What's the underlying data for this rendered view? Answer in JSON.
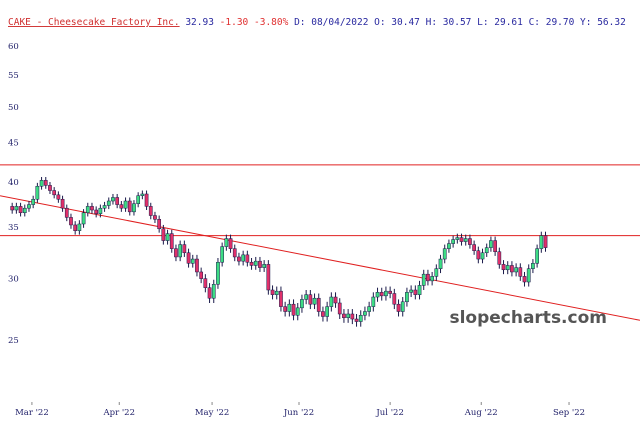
{
  "chart_data": {
    "type": "candlestick",
    "header": {
      "ticker": "CAKE - Cheesecake Factory Inc.",
      "price": "32.93",
      "change": "-1.30",
      "change_pct": "-3.80%",
      "details": "D: 08/04/2022 O: 30.47 H: 30.57 L: 29.61 C: 29.70 Y: 56.32"
    },
    "watermark": "slopecharts.com",
    "log_scale": true,
    "up_color": "#3ddc84",
    "down_color": "#e0306a",
    "wick_color": "#1a1a4a",
    "line_color": "#e02020",
    "ylim": [
      20.9,
      62.9
    ],
    "yticks": [
      25,
      30,
      35,
      40,
      45,
      50,
      55,
      60
    ],
    "xlim": [
      -2.9,
      149.5
    ],
    "xticks": [
      {
        "value": 4.7,
        "label": "Mar '22"
      },
      {
        "value": 25.5,
        "label": "Apr '22"
      },
      {
        "value": 47.6,
        "label": "May '22"
      },
      {
        "value": 68.3,
        "label": "Jun '22"
      },
      {
        "value": 90,
        "label": "Jul '22"
      },
      {
        "value": 111.7,
        "label": "Aug '22"
      },
      {
        "value": 132.6,
        "label": "Sep '22"
      }
    ],
    "horizontal_lines": [
      42.1,
      34.1
    ],
    "trend_line": {
      "x": [
        -2.9,
        149.5
      ],
      "y": [
        38.4,
        26.5
      ]
    },
    "candles": [
      [
        37.2,
        37.6,
        36.4,
        36.8
      ],
      [
        36.8,
        37.6,
        36.4,
        37.2
      ],
      [
        37.2,
        37.6,
        36.1,
        36.5
      ],
      [
        36.5,
        37.4,
        36.1,
        37.0
      ],
      [
        37.0,
        37.8,
        36.6,
        37.4
      ],
      [
        37.4,
        38.4,
        37.0,
        38.0
      ],
      [
        38.0,
        39.9,
        37.6,
        39.5
      ],
      [
        39.5,
        40.6,
        39.1,
        40.2
      ],
      [
        40.2,
        40.6,
        39.2,
        39.6
      ],
      [
        39.6,
        40.0,
        38.6,
        39.0
      ],
      [
        39.0,
        39.4,
        38.1,
        38.5
      ],
      [
        38.5,
        38.9,
        37.6,
        38.0
      ],
      [
        38.0,
        38.4,
        36.6,
        37.0
      ],
      [
        37.0,
        37.4,
        35.6,
        36.0
      ],
      [
        36.0,
        36.4,
        34.8,
        35.2
      ],
      [
        35.2,
        35.6,
        34.2,
        34.6
      ],
      [
        34.6,
        35.7,
        34.2,
        35.3
      ],
      [
        35.3,
        36.9,
        34.9,
        36.5
      ],
      [
        36.5,
        37.6,
        36.1,
        37.2
      ],
      [
        37.2,
        37.6,
        36.4,
        36.8
      ],
      [
        36.8,
        37.2,
        36.0,
        36.4
      ],
      [
        36.4,
        37.4,
        36.0,
        37.0
      ],
      [
        37.0,
        37.7,
        36.6,
        37.3
      ],
      [
        37.3,
        38.2,
        36.9,
        37.8
      ],
      [
        37.8,
        38.6,
        37.4,
        38.2
      ],
      [
        38.2,
        38.6,
        37.0,
        37.4
      ],
      [
        37.4,
        37.8,
        36.6,
        37.0
      ],
      [
        37.0,
        38.2,
        36.6,
        37.8
      ],
      [
        37.8,
        38.2,
        36.2,
        36.6
      ],
      [
        36.6,
        37.9,
        36.2,
        37.5
      ],
      [
        37.5,
        38.8,
        37.1,
        38.4
      ],
      [
        38.4,
        39.0,
        38.0,
        38.6
      ],
      [
        38.6,
        39.0,
        36.8,
        37.2
      ],
      [
        37.2,
        37.6,
        35.8,
        36.2
      ],
      [
        36.2,
        36.6,
        35.4,
        35.8
      ],
      [
        35.8,
        36.2,
        34.4,
        34.8
      ],
      [
        34.8,
        35.2,
        33.2,
        33.6
      ],
      [
        33.6,
        34.7,
        33.2,
        34.3
      ],
      [
        34.3,
        34.7,
        32.4,
        32.8
      ],
      [
        32.8,
        33.2,
        31.6,
        32.0
      ],
      [
        32.0,
        33.6,
        31.6,
        33.2
      ],
      [
        33.2,
        33.6,
        32.0,
        32.4
      ],
      [
        32.4,
        32.8,
        31.0,
        31.4
      ],
      [
        31.4,
        32.2,
        31.0,
        31.8
      ],
      [
        31.8,
        32.2,
        30.2,
        30.6
      ],
      [
        30.6,
        31.0,
        29.6,
        30.0
      ],
      [
        30.0,
        30.4,
        28.8,
        29.2
      ],
      [
        29.2,
        29.6,
        27.9,
        28.3
      ],
      [
        28.3,
        29.9,
        27.9,
        29.5
      ],
      [
        29.5,
        31.9,
        29.1,
        31.5
      ],
      [
        31.5,
        33.4,
        31.1,
        33.0
      ],
      [
        33.0,
        34.2,
        32.6,
        33.8
      ],
      [
        33.8,
        34.2,
        32.4,
        32.8
      ],
      [
        32.8,
        33.2,
        31.6,
        32.0
      ],
      [
        32.0,
        32.4,
        31.2,
        31.6
      ],
      [
        31.6,
        32.6,
        31.2,
        32.2
      ],
      [
        32.2,
        32.6,
        31.1,
        31.5
      ],
      [
        31.5,
        31.9,
        30.8,
        31.2
      ],
      [
        31.2,
        32.0,
        30.8,
        31.6
      ],
      [
        31.6,
        32.0,
        30.6,
        31.0
      ],
      [
        31.0,
        31.7,
        30.6,
        31.3
      ],
      [
        31.3,
        31.7,
        28.6,
        29.0
      ],
      [
        29.0,
        29.4,
        28.2,
        28.6
      ],
      [
        28.6,
        29.3,
        28.2,
        28.9
      ],
      [
        28.9,
        29.3,
        27.2,
        27.6
      ],
      [
        27.6,
        28.0,
        26.8,
        27.2
      ],
      [
        27.2,
        28.2,
        26.8,
        27.8
      ],
      [
        27.8,
        28.2,
        26.5,
        26.9
      ],
      [
        26.9,
        27.9,
        26.5,
        27.5
      ],
      [
        27.5,
        28.6,
        27.1,
        28.2
      ],
      [
        28.2,
        29.0,
        27.8,
        28.6
      ],
      [
        28.6,
        29.0,
        27.4,
        27.8
      ],
      [
        27.8,
        28.7,
        27.4,
        28.3
      ],
      [
        28.3,
        28.7,
        26.8,
        27.2
      ],
      [
        27.2,
        27.6,
        26.4,
        26.8
      ],
      [
        26.8,
        28.0,
        26.4,
        27.6
      ],
      [
        27.6,
        28.8,
        27.2,
        28.4
      ],
      [
        28.4,
        28.8,
        27.5,
        27.9
      ],
      [
        27.9,
        28.3,
        26.6,
        27.0
      ],
      [
        27.0,
        27.4,
        26.3,
        26.7
      ],
      [
        26.7,
        27.4,
        26.3,
        27.0
      ],
      [
        27.0,
        27.4,
        26.2,
        26.6
      ],
      [
        26.6,
        27.0,
        26.0,
        26.4
      ],
      [
        26.4,
        27.3,
        26.0,
        26.9
      ],
      [
        26.9,
        27.6,
        26.5,
        27.2
      ],
      [
        27.2,
        28.0,
        26.8,
        27.6
      ],
      [
        27.6,
        28.8,
        27.2,
        28.4
      ],
      [
        28.4,
        29.2,
        28.0,
        28.8
      ],
      [
        28.8,
        29.2,
        28.1,
        28.5
      ],
      [
        28.5,
        29.3,
        28.1,
        28.9
      ],
      [
        28.9,
        29.3,
        28.3,
        28.7
      ],
      [
        28.7,
        29.1,
        27.4,
        27.8
      ],
      [
        27.8,
        28.2,
        26.8,
        27.2
      ],
      [
        27.2,
        28.4,
        26.8,
        28.0
      ],
      [
        28.0,
        29.2,
        27.6,
        28.8
      ],
      [
        28.8,
        29.4,
        28.4,
        29.0
      ],
      [
        29.0,
        29.4,
        28.2,
        28.6
      ],
      [
        28.6,
        29.8,
        28.2,
        29.4
      ],
      [
        29.4,
        30.8,
        29.0,
        30.4
      ],
      [
        30.4,
        30.8,
        29.4,
        29.8
      ],
      [
        29.8,
        30.6,
        29.4,
        30.2
      ],
      [
        30.2,
        31.3,
        29.8,
        30.9
      ],
      [
        30.9,
        32.2,
        30.5,
        31.8
      ],
      [
        31.8,
        33.2,
        31.4,
        32.8
      ],
      [
        32.8,
        33.7,
        32.4,
        33.3
      ],
      [
        33.3,
        34.1,
        32.9,
        33.7
      ],
      [
        33.7,
        34.3,
        33.3,
        33.9
      ],
      [
        33.9,
        34.3,
        33.1,
        33.5
      ],
      [
        33.5,
        34.2,
        33.1,
        33.8
      ],
      [
        33.8,
        34.2,
        32.8,
        33.2
      ],
      [
        33.2,
        33.6,
        32.2,
        32.6
      ],
      [
        32.6,
        33.0,
        31.4,
        31.8
      ],
      [
        31.8,
        32.8,
        31.4,
        32.4
      ],
      [
        32.4,
        33.3,
        32.0,
        32.9
      ],
      [
        32.9,
        34.0,
        32.5,
        33.6
      ],
      [
        33.6,
        34.0,
        32.1,
        32.5
      ],
      [
        32.5,
        32.9,
        30.9,
        31.3
      ],
      [
        31.3,
        31.7,
        30.4,
        30.8
      ],
      [
        30.8,
        31.6,
        30.4,
        31.2
      ],
      [
        31.2,
        31.6,
        30.2,
        30.6
      ],
      [
        30.6,
        31.4,
        30.2,
        31.0
      ],
      [
        31.0,
        31.4,
        29.8,
        30.2
      ],
      [
        30.2,
        30.6,
        29.3,
        29.7
      ],
      [
        29.7,
        31.3,
        29.3,
        30.9
      ],
      [
        30.9,
        31.8,
        30.5,
        31.4
      ],
      [
        31.4,
        33.2,
        31.0,
        32.8
      ],
      [
        32.8,
        34.5,
        32.4,
        34.1
      ],
      [
        34.1,
        34.5,
        32.5,
        32.9
      ]
    ]
  }
}
